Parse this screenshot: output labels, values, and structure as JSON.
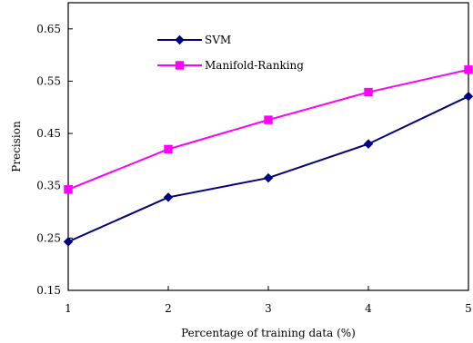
{
  "chart_data": {
    "type": "line",
    "title": "",
    "xlabel": "Percentage of training data (%)",
    "ylabel": "Precision",
    "x": [
      1,
      2,
      3,
      4,
      5
    ],
    "x_tick_labels": [
      "1",
      "2",
      "3",
      "4",
      "5"
    ],
    "xlim": [
      1,
      5
    ],
    "ylim": [
      0.15,
      0.7
    ],
    "y_ticks": [
      0.15,
      0.25,
      0.35,
      0.45,
      0.55,
      0.65
    ],
    "y_tick_labels": [
      "0.15",
      "0.25",
      "0.35",
      "0.45",
      "0.55",
      "0.65"
    ],
    "grid": false,
    "legend_position": "top-center",
    "series": [
      {
        "name": "SVM",
        "values": [
          0.243,
          0.328,
          0.365,
          0.43,
          0.521
        ],
        "color": "#000080",
        "marker": "diamond"
      },
      {
        "name": "Manifold-Ranking",
        "values": [
          0.343,
          0.42,
          0.476,
          0.529,
          0.572
        ],
        "color": "#FF00FF",
        "marker": "square"
      }
    ]
  }
}
